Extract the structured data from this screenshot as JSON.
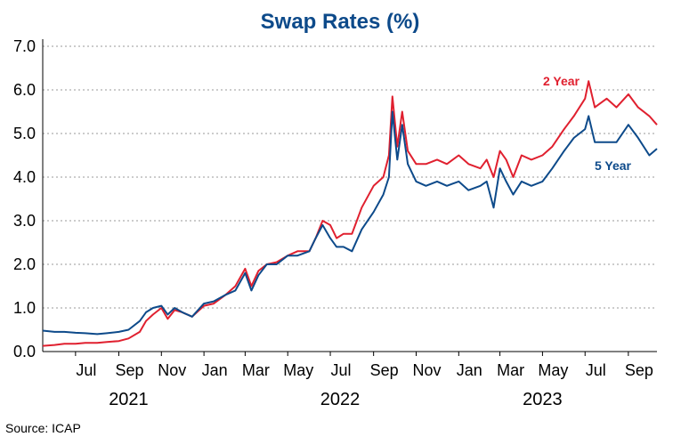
{
  "title": "Swap Rates (%)",
  "source": "Source: ICAP",
  "colors": {
    "two_year": "#e0202f",
    "five_year": "#0d4a8a",
    "title": "#0d4a8a",
    "grid": "#9a9a9a"
  },
  "chart_data": {
    "type": "line",
    "title": "Swap Rates (%)",
    "ylim": [
      0,
      7
    ],
    "y_ticks": [
      "0.0",
      "1.0",
      "2.0",
      "3.0",
      "4.0",
      "5.0",
      "6.0",
      "7.0"
    ],
    "x_range": [
      "2021-05-15",
      "2023-10-12"
    ],
    "x_ticks": [
      {
        "date": "2021-07-01",
        "label": "Jul"
      },
      {
        "date": "2021-09-01",
        "label": "Sep"
      },
      {
        "date": "2021-11-01",
        "label": "Nov"
      },
      {
        "date": "2022-01-01",
        "label": "Jan"
      },
      {
        "date": "2022-03-01",
        "label": "Mar"
      },
      {
        "date": "2022-05-01",
        "label": "May"
      },
      {
        "date": "2022-07-01",
        "label": "Jul"
      },
      {
        "date": "2022-09-01",
        "label": "Sep"
      },
      {
        "date": "2022-11-01",
        "label": "Nov"
      },
      {
        "date": "2023-01-01",
        "label": "Jan"
      },
      {
        "date": "2023-03-01",
        "label": "Mar"
      },
      {
        "date": "2023-05-01",
        "label": "May"
      },
      {
        "date": "2023-07-01",
        "label": "Jul"
      },
      {
        "date": "2023-09-01",
        "label": "Sep"
      }
    ],
    "year_labels": [
      {
        "date": "2021-09-15",
        "label": "2021"
      },
      {
        "date": "2022-07-15",
        "label": "2022"
      },
      {
        "date": "2023-05-01",
        "label": "2023"
      }
    ],
    "grid": "horizontal dashed",
    "series": [
      {
        "name": "2 Year",
        "x": [
          "2021-05-15",
          "2021-06-01",
          "2021-06-15",
          "2021-07-01",
          "2021-07-15",
          "2021-08-01",
          "2021-08-15",
          "2021-09-01",
          "2021-09-15",
          "2021-10-01",
          "2021-10-10",
          "2021-10-20",
          "2021-11-01",
          "2021-11-10",
          "2021-11-20",
          "2021-12-01",
          "2021-12-15",
          "2022-01-01",
          "2022-01-15",
          "2022-02-01",
          "2022-02-15",
          "2022-03-01",
          "2022-03-10",
          "2022-03-20",
          "2022-04-01",
          "2022-04-15",
          "2022-05-01",
          "2022-05-15",
          "2022-06-01",
          "2022-06-10",
          "2022-06-20",
          "2022-07-01",
          "2022-07-10",
          "2022-07-20",
          "2022-08-01",
          "2022-08-15",
          "2022-09-01",
          "2022-09-15",
          "2022-09-23",
          "2022-09-28",
          "2022-10-05",
          "2022-10-12",
          "2022-10-20",
          "2022-11-01",
          "2022-11-15",
          "2022-12-01",
          "2022-12-15",
          "2023-01-01",
          "2023-01-15",
          "2023-02-01",
          "2023-02-10",
          "2023-02-20",
          "2023-03-01",
          "2023-03-10",
          "2023-03-20",
          "2023-04-01",
          "2023-04-15",
          "2023-05-01",
          "2023-05-15",
          "2023-06-01",
          "2023-06-15",
          "2023-07-01",
          "2023-07-06",
          "2023-07-15",
          "2023-08-01",
          "2023-08-15",
          "2023-09-01",
          "2023-09-15",
          "2023-10-01",
          "2023-10-12"
        ],
        "values": [
          0.13,
          0.15,
          0.18,
          0.18,
          0.2,
          0.2,
          0.22,
          0.24,
          0.3,
          0.45,
          0.7,
          0.85,
          1.0,
          0.75,
          0.95,
          0.9,
          0.8,
          1.05,
          1.1,
          1.3,
          1.5,
          1.9,
          1.5,
          1.85,
          2.0,
          2.05,
          2.2,
          2.3,
          2.3,
          2.6,
          3.0,
          2.9,
          2.6,
          2.7,
          2.7,
          3.3,
          3.8,
          4.0,
          4.5,
          5.85,
          4.7,
          5.5,
          4.6,
          4.3,
          4.3,
          4.4,
          4.3,
          4.5,
          4.3,
          4.2,
          4.4,
          4.0,
          4.6,
          4.4,
          4.0,
          4.5,
          4.4,
          4.5,
          4.7,
          5.1,
          5.4,
          5.8,
          6.2,
          5.6,
          5.8,
          5.6,
          5.9,
          5.6,
          5.4,
          5.2
        ]
      },
      {
        "name": "5 Year",
        "x": [
          "2021-05-15",
          "2021-06-01",
          "2021-06-15",
          "2021-07-01",
          "2021-07-15",
          "2021-08-01",
          "2021-08-15",
          "2021-09-01",
          "2021-09-15",
          "2021-10-01",
          "2021-10-10",
          "2021-10-20",
          "2021-11-01",
          "2021-11-10",
          "2021-11-20",
          "2021-12-01",
          "2021-12-15",
          "2022-01-01",
          "2022-01-15",
          "2022-02-01",
          "2022-02-15",
          "2022-03-01",
          "2022-03-10",
          "2022-03-20",
          "2022-04-01",
          "2022-04-15",
          "2022-05-01",
          "2022-05-15",
          "2022-06-01",
          "2022-06-10",
          "2022-06-20",
          "2022-07-01",
          "2022-07-10",
          "2022-07-20",
          "2022-08-01",
          "2022-08-15",
          "2022-09-01",
          "2022-09-15",
          "2022-09-23",
          "2022-09-28",
          "2022-10-05",
          "2022-10-12",
          "2022-10-20",
          "2022-11-01",
          "2022-11-15",
          "2022-12-01",
          "2022-12-15",
          "2023-01-01",
          "2023-01-15",
          "2023-02-01",
          "2023-02-10",
          "2023-02-20",
          "2023-03-01",
          "2023-03-10",
          "2023-03-20",
          "2023-04-01",
          "2023-04-15",
          "2023-05-01",
          "2023-05-15",
          "2023-06-01",
          "2023-06-15",
          "2023-07-01",
          "2023-07-06",
          "2023-07-15",
          "2023-08-01",
          "2023-08-15",
          "2023-09-01",
          "2023-09-15",
          "2023-10-01",
          "2023-10-12"
        ],
        "values": [
          0.48,
          0.45,
          0.45,
          0.43,
          0.42,
          0.4,
          0.42,
          0.45,
          0.5,
          0.7,
          0.9,
          1.0,
          1.05,
          0.85,
          1.0,
          0.9,
          0.8,
          1.1,
          1.15,
          1.3,
          1.4,
          1.8,
          1.4,
          1.75,
          2.0,
          2.0,
          2.2,
          2.2,
          2.3,
          2.6,
          2.9,
          2.6,
          2.4,
          2.4,
          2.3,
          2.8,
          3.2,
          3.6,
          4.0,
          5.5,
          4.4,
          5.2,
          4.3,
          3.9,
          3.8,
          3.9,
          3.8,
          3.9,
          3.7,
          3.8,
          3.9,
          3.3,
          4.2,
          3.9,
          3.6,
          3.9,
          3.8,
          3.9,
          4.2,
          4.6,
          4.9,
          5.1,
          5.4,
          4.8,
          4.8,
          4.8,
          5.2,
          4.9,
          4.5,
          4.65
        ]
      }
    ]
  }
}
